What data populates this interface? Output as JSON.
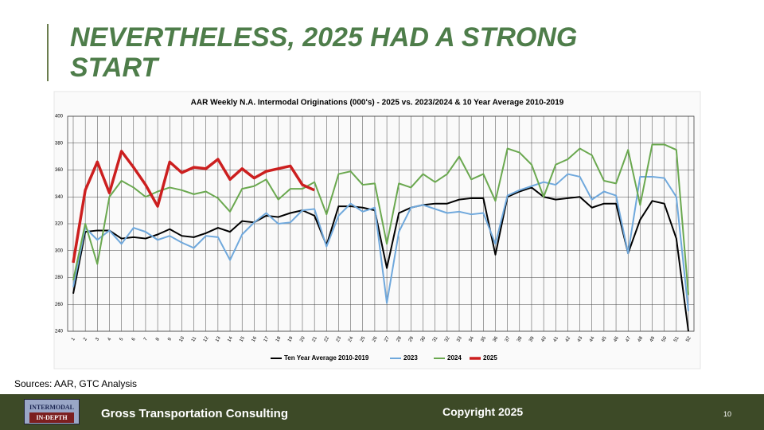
{
  "slide": {
    "title": "NEVERTHELESS, 2025 HAD A STRONG START",
    "sources": "Sources: AAR, GTC Analysis"
  },
  "footer": {
    "logo": [
      "INTERMODAL",
      "IN-DEPTH"
    ],
    "company": "Gross Transportation Consulting",
    "copyright": "Copyright 2025",
    "page": "10"
  },
  "chart_data": {
    "type": "line",
    "title": "AAR Weekly N.A. Intermodal Originations (000's) - 2025 vs. 2023/2024 & 10 Year Average 2010-2019",
    "categories": [
      "1",
      "2",
      "3",
      "4",
      "5",
      "6",
      "7",
      "8",
      "9",
      "10",
      "11",
      "12",
      "13",
      "14",
      "15",
      "16",
      "17",
      "18",
      "19",
      "20",
      "21",
      "22",
      "23",
      "24",
      "25",
      "26",
      "27",
      "28",
      "29",
      "30",
      "31",
      "32",
      "33",
      "34",
      "35",
      "36",
      "37",
      "38",
      "39",
      "40",
      "41",
      "42",
      "43",
      "44",
      "45",
      "46",
      "47",
      "48",
      "49",
      "50",
      "51",
      "52"
    ],
    "ylim": [
      240,
      400
    ],
    "yticks": [
      240,
      260,
      280,
      300,
      320,
      340,
      360,
      380,
      400
    ],
    "grid": true,
    "legend": "bottom",
    "series": [
      {
        "name": "Ten Year Average 2010-2019",
        "color": "#000000",
        "width": 2,
        "values": [
          268,
          314,
          315,
          315,
          309,
          310,
          309,
          312,
          316,
          311,
          310,
          313,
          317,
          314,
          322,
          321,
          326,
          325,
          328,
          330,
          326,
          304,
          333,
          333,
          332,
          330,
          287,
          328,
          332,
          334,
          335,
          335,
          338,
          339,
          339,
          297,
          340,
          344,
          347,
          340,
          338,
          339,
          340,
          332,
          335,
          335,
          298,
          323,
          337,
          335,
          309,
          240
        ]
      },
      {
        "name": "2023",
        "color": "#6fa8dc",
        "width": 2,
        "values": [
          273,
          317,
          308,
          315,
          305,
          317,
          314,
          308,
          311,
          306,
          302,
          311,
          310,
          293,
          312,
          321,
          328,
          320,
          321,
          330,
          331,
          303,
          326,
          335,
          329,
          332,
          261,
          314,
          332,
          334,
          331,
          328,
          329,
          327,
          328,
          305,
          341,
          345,
          348,
          351,
          349,
          357,
          355,
          338,
          344,
          341,
          298,
          355,
          355,
          354,
          340,
          255
        ]
      },
      {
        "name": "2024",
        "color": "#6aa84f",
        "width": 2,
        "values": [
          278,
          320,
          290,
          340,
          352,
          347,
          340,
          344,
          347,
          345,
          342,
          344,
          339,
          329,
          346,
          348,
          353,
          338,
          346,
          346,
          351,
          327,
          357,
          359,
          349,
          350,
          305,
          350,
          347,
          357,
          351,
          357,
          370,
          353,
          357,
          337,
          376,
          373,
          364,
          340,
          364,
          368,
          376,
          371,
          352,
          350,
          375,
          334,
          379,
          379,
          375,
          267
        ]
      },
      {
        "name": "2025",
        "color": "#cc1f1f",
        "width": 3.5,
        "values": [
          291,
          345,
          366,
          343,
          374,
          362,
          349,
          333,
          366,
          358,
          362,
          361,
          368,
          353,
          361,
          354,
          359,
          361,
          363,
          349,
          345,
          null,
          null,
          null,
          null,
          null,
          null,
          null,
          null,
          null,
          null,
          null,
          null,
          null,
          null,
          null,
          null,
          null,
          null,
          null,
          null,
          null,
          null,
          null,
          null,
          null,
          null,
          null,
          null,
          null,
          null,
          null
        ]
      }
    ]
  }
}
